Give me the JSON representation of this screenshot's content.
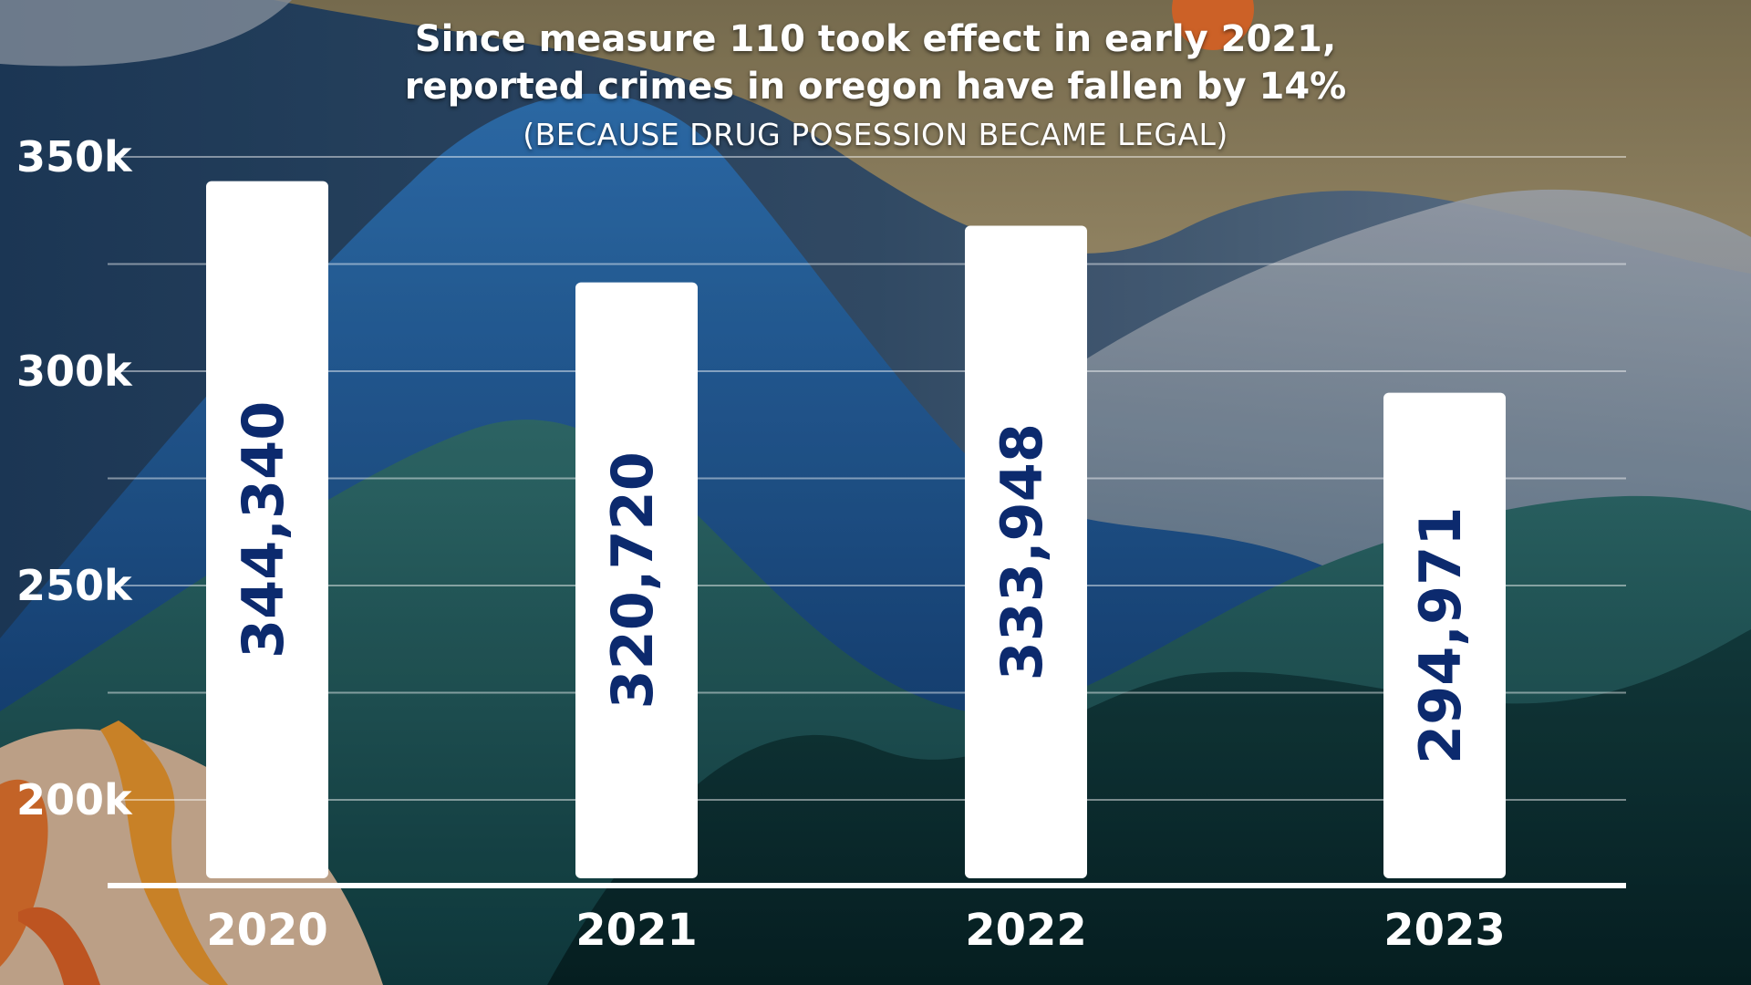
{
  "chart_data": {
    "type": "bar",
    "title_line1": "Since measure 110 took effect in early 2021,",
    "title_line2": "reported crimes in oregon have fallen by 14%",
    "subtitle": "(BECAUSE DRUG POSESSION BECAME LEGAL)",
    "categories": [
      "2020",
      "2021",
      "2022",
      "2023"
    ],
    "values": [
      344340,
      320720,
      333948,
      294971
    ],
    "value_labels": [
      "344,340",
      "320,720",
      "333,948",
      "294,971"
    ],
    "ylim": [
      180000,
      350000
    ],
    "yticks": [
      {
        "value": 200000,
        "label": "200k"
      },
      {
        "value": 250000,
        "label": "250k"
      },
      {
        "value": 300000,
        "label": "300k"
      },
      {
        "value": 350000,
        "label": "350k"
      }
    ],
    "minor_gridlines": [
      225000,
      275000,
      325000
    ],
    "grid": true,
    "xlabel": "",
    "ylabel": "",
    "bar_color": "#ffffff",
    "label_color": "#0c2a6e"
  }
}
